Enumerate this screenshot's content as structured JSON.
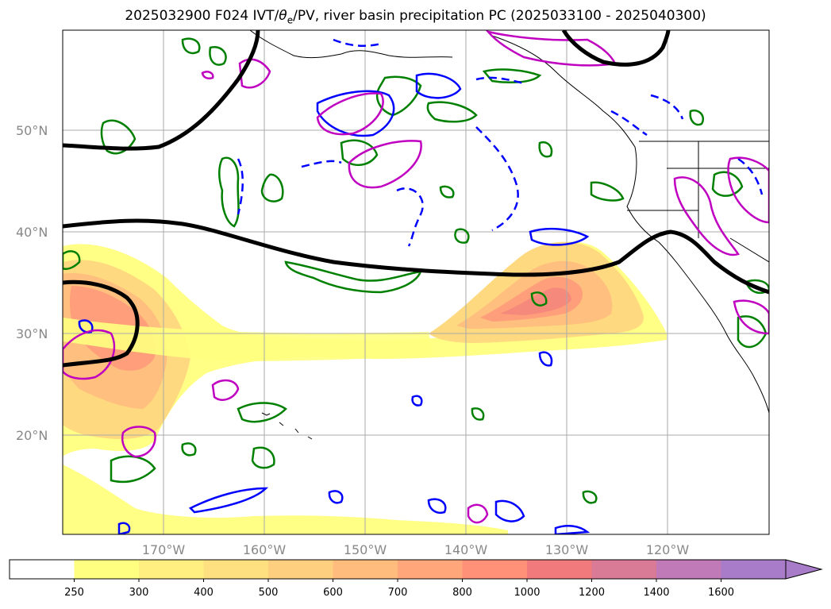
{
  "title": "2025032900 F024 IVT/θe/PV, river basin precipitation PC (2025033100 - 2025040300)",
  "title_parts": {
    "pre": "2025032900 F024 IVT/",
    "theta": "θ",
    "sub": "e",
    "post": "/PV, river basin precipitation PC (2025033100 - 2025040300)"
  },
  "map": {
    "lat_labels": [
      "50°N",
      "40°N",
      "30°N",
      "20°N"
    ],
    "lon_labels": [
      "170°W",
      "160°W",
      "150°W",
      "140°W",
      "130°W",
      "120°W"
    ],
    "lat_range": [
      10,
      60
    ],
    "lon_range": [
      -180,
      -110
    ]
  },
  "colorbar": {
    "levels": [
      "250",
      "300",
      "400",
      "500",
      "600",
      "700",
      "800",
      "1000",
      "1200",
      "1400",
      "1600"
    ],
    "colors": [
      "#ffffff",
      "#ffff80",
      "#ffef80",
      "#ffe080",
      "#ffcf80",
      "#ffbc7d",
      "#ffa77a",
      "#ff9178",
      "#f07a7c",
      "#d97a96",
      "#c07ab8",
      "#a87cc8"
    ]
  },
  "legend_colors": {
    "ivt_shade": "#ffd27a",
    "theta_e_contour": "#008000",
    "pv_contour_pos": "#0000ff",
    "pv_contour_mag": "#c000c0",
    "black_line": "#000000"
  }
}
